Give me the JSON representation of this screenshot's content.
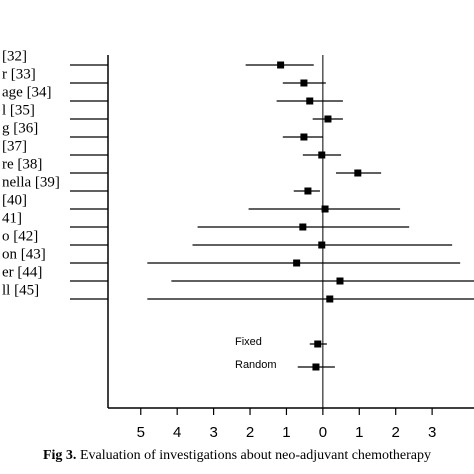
{
  "chart_data": {
    "type": "forest",
    "categories": [
      "[32]",
      "r [33]",
      "age [34]",
      "l [35]",
      "g [36]",
      "[37]",
      "re [38]",
      "nella [39]",
      "[40]",
      "41]",
      "o [42]",
      "on [43]",
      "er [44]",
      "ll [45]"
    ],
    "values": [
      -1.16,
      -0.52,
      -0.36,
      0.14,
      -0.52,
      -0.03,
      0.96,
      -0.41,
      0.06,
      -0.55,
      -0.03,
      -0.72,
      0.47,
      0.19
    ],
    "lower": [
      -2.12,
      -1.1,
      -1.27,
      -0.28,
      -1.1,
      -0.55,
      0.36,
      -0.8,
      -2.04,
      -3.44,
      -3.58,
      -4.82,
      -4.16,
      -4.82
    ],
    "upper": [
      -0.25,
      0.08,
      0.55,
      0.55,
      0,
      0.5,
      1.6,
      -0.08,
      2.12,
      2.37,
      3.55,
      3.77,
      4.5,
      4.5
    ],
    "pooled": [
      {
        "name": "Fixed",
        "value": -0.14,
        "lower": -0.36,
        "upper": 0.11
      },
      {
        "name": "Random",
        "value": -0.19,
        "lower": -0.69,
        "upper": 0.33
      }
    ],
    "color": "#000000",
    "xlim": [
      -5.9,
      4.15
    ],
    "xticks": [
      {
        "value": -5,
        "label": "5"
      },
      {
        "value": -4,
        "label": "4"
      },
      {
        "value": -3,
        "label": "3"
      },
      {
        "value": -2,
        "label": "2"
      },
      {
        "value": -1,
        "label": "1"
      },
      0,
      1,
      2,
      3
    ],
    "caption_label": "Fig 3.",
    "caption": " Evaluation of investigations about neo-adjuvant chemotherapy"
  }
}
